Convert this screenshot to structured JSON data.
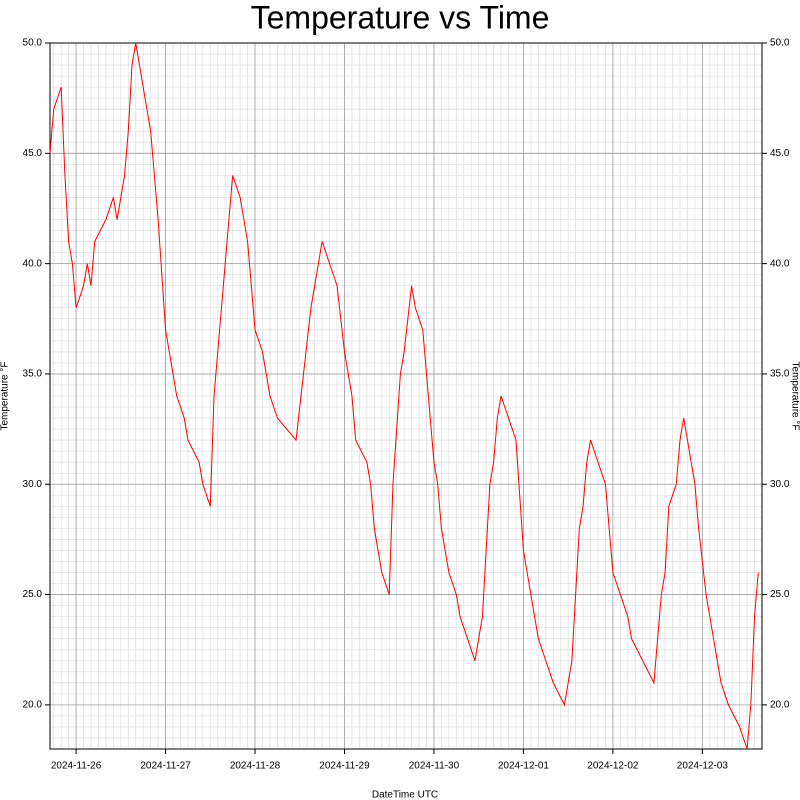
{
  "chart_data": {
    "type": "line",
    "title": "Temperature vs Time",
    "x_label": "DateTime UTC",
    "y_label": "Temperature °F",
    "y2_label": "Temperature °F",
    "x": [
      "2024-11-25T17:00",
      "2024-11-25T18:00",
      "2024-11-25T20:00",
      "2024-11-25T21:00",
      "2024-11-25T22:00",
      "2024-11-25T23:00",
      "2024-11-26T00:00",
      "2024-11-26T02:00",
      "2024-11-26T03:00",
      "2024-11-26T04:00",
      "2024-11-26T05:00",
      "2024-11-26T08:00",
      "2024-11-26T10:00",
      "2024-11-26T11:00",
      "2024-11-26T13:00",
      "2024-11-26T14:00",
      "2024-11-26T15:00",
      "2024-11-26T16:00",
      "2024-11-26T20:00",
      "2024-11-26T22:00",
      "2024-11-27T00:00",
      "2024-11-27T03:00",
      "2024-11-27T05:00",
      "2024-11-27T06:00",
      "2024-11-27T09:00",
      "2024-11-27T10:00",
      "2024-11-27T12:00",
      "2024-11-27T13:00",
      "2024-11-27T15:00",
      "2024-11-27T18:00",
      "2024-11-27T20:00",
      "2024-11-27T22:00",
      "2024-11-28T00:00",
      "2024-11-28T02:00",
      "2024-11-28T04:00",
      "2024-11-28T06:00",
      "2024-11-28T11:00",
      "2024-11-28T13:00",
      "2024-11-28T15:00",
      "2024-11-28T17:00",
      "2024-11-28T18:00",
      "2024-11-28T22:00",
      "2024-11-29T00:00",
      "2024-11-29T02:00",
      "2024-11-29T03:00",
      "2024-11-29T06:00",
      "2024-11-29T07:00",
      "2024-11-29T08:00",
      "2024-11-29T10:00",
      "2024-11-29T12:00",
      "2024-11-29T13:00",
      "2024-11-29T15:00",
      "2024-11-29T16:00",
      "2024-11-29T18:00",
      "2024-11-29T19:00",
      "2024-11-29T21:00",
      "2024-11-29T23:00",
      "2024-11-30T00:00",
      "2024-11-30T01:00",
      "2024-11-30T02:00",
      "2024-11-30T04:00",
      "2024-11-30T06:00",
      "2024-11-30T07:00",
      "2024-11-30T09:00",
      "2024-11-30T11:00",
      "2024-11-30T13:00",
      "2024-11-30T14:00",
      "2024-11-30T15:00",
      "2024-11-30T16:00",
      "2024-11-30T17:00",
      "2024-11-30T18:00",
      "2024-11-30T22:00",
      "2024-12-01T00:00",
      "2024-12-01T02:00",
      "2024-12-01T04:00",
      "2024-12-01T06:00",
      "2024-12-01T08:00",
      "2024-12-01T11:00",
      "2024-12-01T13:00",
      "2024-12-01T14:00",
      "2024-12-01T15:00",
      "2024-12-01T16:00",
      "2024-12-01T17:00",
      "2024-12-01T18:00",
      "2024-12-01T22:00",
      "2024-12-02T00:00",
      "2024-12-02T02:00",
      "2024-12-02T04:00",
      "2024-12-02T05:00",
      "2024-12-02T08:00",
      "2024-12-02T11:00",
      "2024-12-02T13:00",
      "2024-12-02T14:00",
      "2024-12-02T15:00",
      "2024-12-02T17:00",
      "2024-12-02T18:00",
      "2024-12-02T19:00",
      "2024-12-02T20:00",
      "2024-12-02T22:00",
      "2024-12-02T23:00",
      "2024-12-03T01:00",
      "2024-12-03T03:00",
      "2024-12-03T04:00",
      "2024-12-03T05:00",
      "2024-12-03T07:00",
      "2024-12-03T10:00",
      "2024-12-03T12:00",
      "2024-12-03T13:00",
      "2024-12-03T14:00",
      "2024-12-03T15:00"
    ],
    "series": [
      {
        "name": "Temperature",
        "color": "#ff0000",
        "values": [
          45,
          47,
          48,
          44,
          41,
          40,
          38,
          39,
          40,
          39,
          41,
          42,
          43,
          42,
          44,
          46,
          49,
          50,
          46,
          42,
          37,
          34,
          33,
          32,
          31,
          30,
          29,
          34,
          38,
          44,
          43,
          41,
          37,
          36,
          34,
          33,
          32,
          35,
          38,
          40,
          41,
          39,
          36,
          34,
          32,
          31,
          30,
          28,
          26,
          25,
          30,
          35,
          36,
          39,
          38,
          37,
          33,
          31,
          30,
          28,
          26,
          25,
          24,
          23,
          22,
          24,
          27,
          30,
          31,
          33,
          34,
          32,
          27,
          25,
          23,
          22,
          21,
          20,
          22,
          25,
          28,
          29,
          31,
          32,
          30,
          26,
          25,
          24,
          23,
          22,
          21,
          25,
          26,
          29,
          30,
          32,
          33,
          32,
          30,
          28,
          25,
          23,
          22,
          21,
          20,
          19,
          18,
          20,
          24,
          26
        ]
      }
    ],
    "xlim": [
      "2024-11-25T17:00",
      "2024-12-03T16:00"
    ],
    "xticks": [
      "2024-11-26",
      "2024-11-27",
      "2024-11-28",
      "2024-11-29",
      "2024-11-30",
      "2024-12-01",
      "2024-12-02",
      "2024-12-03"
    ],
    "ylim": [
      18,
      50
    ],
    "yticks": [
      {
        "value": 20,
        "label": "20.0"
      },
      {
        "value": 25,
        "label": "25.0"
      },
      {
        "value": 30,
        "label": "30.0"
      },
      {
        "value": 35,
        "label": "35.0"
      },
      {
        "value": 40,
        "label": "40.0"
      },
      {
        "value": 45,
        "label": "45.0"
      },
      {
        "value": 50,
        "label": "50.0"
      }
    ],
    "y2lim": [
      18,
      50
    ],
    "y2ticks": [
      {
        "value": 20,
        "label": "20.0"
      },
      {
        "value": 25,
        "label": "25.0"
      },
      {
        "value": 30,
        "label": "30.0"
      },
      {
        "value": 35,
        "label": "35.0"
      },
      {
        "value": 40,
        "label": "40.0"
      },
      {
        "value": 45,
        "label": "45.0"
      },
      {
        "value": 50,
        "label": "50.0"
      }
    ],
    "grid": true,
    "minor_grid": true
  }
}
